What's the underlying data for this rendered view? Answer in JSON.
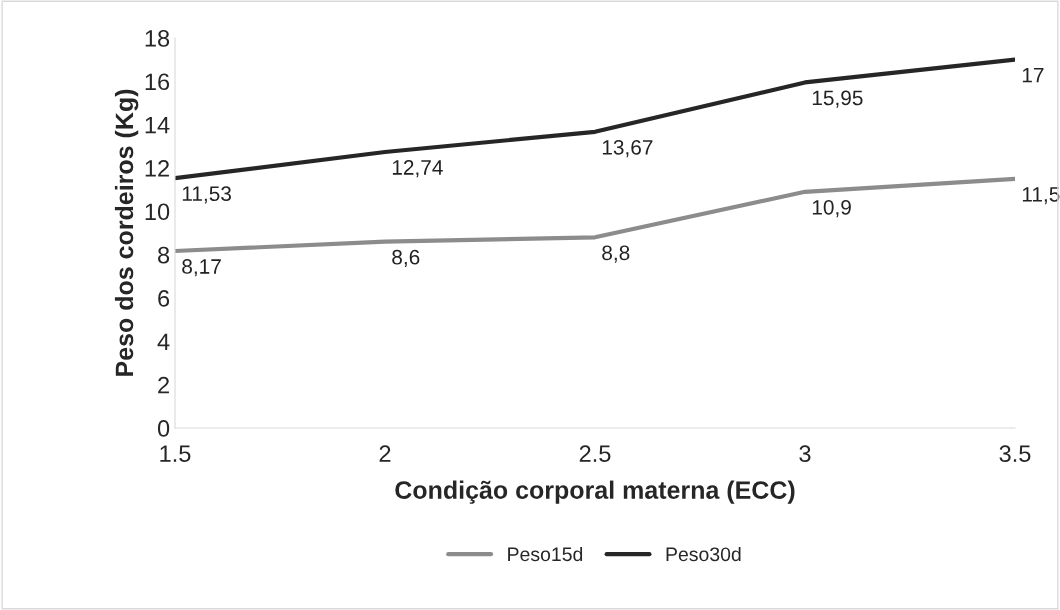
{
  "chart_data": {
    "type": "line",
    "xlabel": "Condição corporal materna (ECC)",
    "ylabel": "Peso dos cordeiros (Kg)",
    "categories": [
      "1.5",
      "2",
      "2.5",
      "3",
      "3.5"
    ],
    "series": [
      {
        "name": "Peso15d",
        "color": "#8c8c8c",
        "values": [
          8.17,
          8.6,
          8.8,
          10.9,
          11.5
        ],
        "value_labels": [
          "8,17",
          "8,6",
          "8,8",
          "10,9",
          "11,5"
        ]
      },
      {
        "name": "Peso30d",
        "color": "#262626",
        "values": [
          11.53,
          12.74,
          13.67,
          15.95,
          17
        ],
        "value_labels": [
          "11,53",
          "12,74",
          "13,67",
          "15,95",
          "17"
        ]
      }
    ],
    "ylim": [
      0,
      18
    ],
    "yticks": [
      0,
      2,
      4,
      6,
      8,
      10,
      12,
      14,
      16,
      18
    ],
    "grid": false,
    "legend": "bottom",
    "marker": "none",
    "line_style": "solid"
  }
}
